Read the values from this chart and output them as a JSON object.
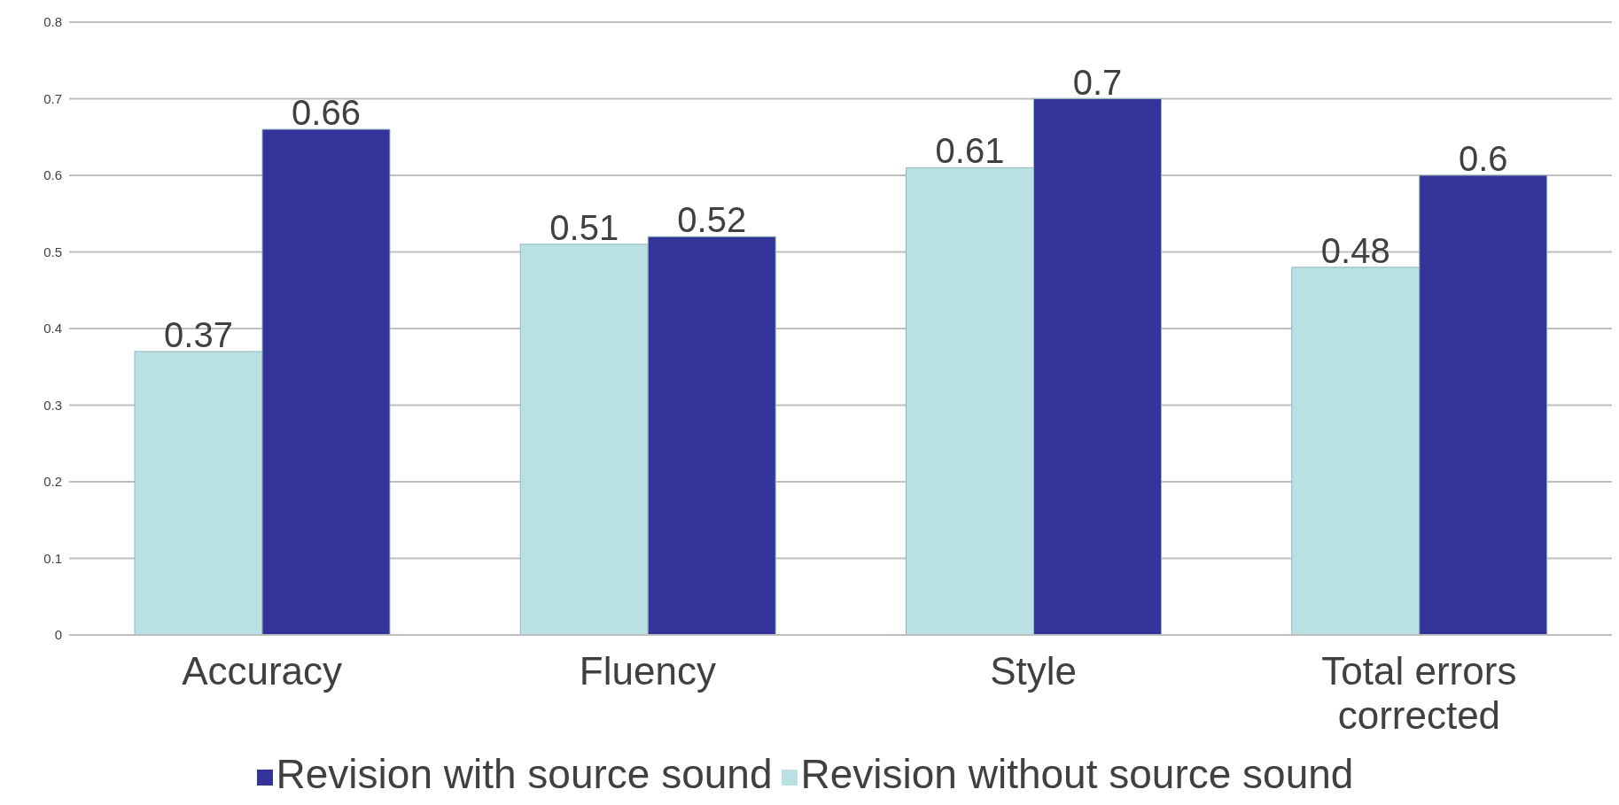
{
  "chart_data": {
    "type": "bar",
    "categories": [
      "Accuracy",
      "Fluency",
      "Style",
      "Total errors corrected"
    ],
    "series": [
      {
        "name": "Revision without source sound",
        "color": "#b9e0e3",
        "values": [
          0.37,
          0.51,
          0.61,
          0.48
        ]
      },
      {
        "name": "Revision with source sound",
        "color": "#333399",
        "values": [
          0.66,
          0.52,
          0.7,
          0.6
        ]
      }
    ],
    "ylim": [
      0,
      0.8
    ],
    "yticks": [
      0,
      0.1,
      0.2,
      0.3,
      0.4,
      0.5,
      0.6,
      0.7,
      0.8
    ],
    "grid": "y",
    "legend": "bottom",
    "data_labels": true
  }
}
